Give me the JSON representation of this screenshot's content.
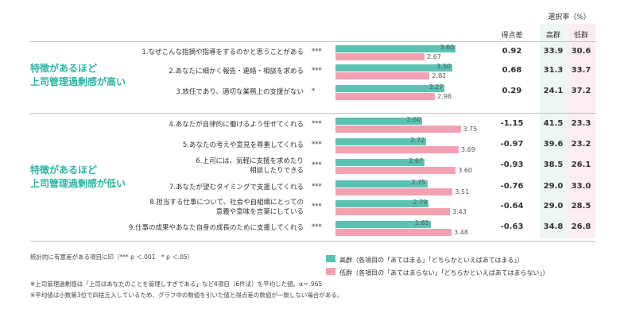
{
  "header": {
    "selection_rate": "選択率（%）",
    "col_diff": "得点差",
    "col_high": "高群",
    "col_low": "低群"
  },
  "groups": [
    {
      "label_line1": "特徴があるほど",
      "label_line2": "上司管理過剰感が高い"
    },
    {
      "label_line1": "特徴があるほど",
      "label_line2": "上司管理過剰感が低い"
    }
  ],
  "colors": {
    "high": "#5bc2b2",
    "low": "#f3a1b0",
    "accent": "#2eb5a4"
  },
  "chart_data": {
    "type": "bar",
    "orientation": "horizontal",
    "xlim": [
      0,
      4
    ],
    "series": [
      {
        "name": "高群",
        "values": [
          3.6,
          3.5,
          3.27,
          2.6,
          2.72,
          2.67,
          2.75,
          2.79,
          2.85
        ]
      },
      {
        "name": "低群",
        "values": [
          2.67,
          2.82,
          2.98,
          3.75,
          3.69,
          3.6,
          3.51,
          3.43,
          3.48
        ]
      }
    ],
    "categories": [
      {
        "line1": "1.なぜこんな指摘や指導をするのかと思うことがある",
        "line2": "",
        "sig": "***",
        "diff": "0.92",
        "high_rate": "33.9",
        "low_rate": "30.6",
        "high_label": "3.60",
        "low_label": "2.67"
      },
      {
        "line1": "2.あなたに細かく報告・連絡・相談を求める",
        "line2": "",
        "sig": "***",
        "diff": "0.68",
        "high_rate": "31.3",
        "low_rate": "33.7",
        "high_label": "3.50",
        "low_label": "2.82"
      },
      {
        "line1": "3.放任であり、適切な業務上の支援がない",
        "line2": "",
        "sig": "*",
        "diff": "0.29",
        "high_rate": "24.1",
        "low_rate": "37.2",
        "high_label": "3.27",
        "low_label": "2.98"
      },
      {
        "line1": "4.あなたが自律的に働けるよう任せてくれる",
        "line2": "",
        "sig": "***",
        "diff": "-1.15",
        "high_rate": "41.5",
        "low_rate": "23.3",
        "high_label": "2.60",
        "low_label": "3.75"
      },
      {
        "line1": "5.あなたの考えや意見を尊重してくれる",
        "line2": "",
        "sig": "***",
        "diff": "-0.97",
        "high_rate": "39.6",
        "low_rate": "23.2",
        "high_label": "2.72",
        "low_label": "3.69"
      },
      {
        "line1": "6.上司には、気軽に支援を求めたり",
        "line2": "相談したりできる",
        "sig": "***",
        "diff": "-0.93",
        "high_rate": "38.5",
        "low_rate": "26.1",
        "high_label": "2.67",
        "low_label": "3.60"
      },
      {
        "line1": "7.あなたが望むタイミングで支援してくれる",
        "line2": "",
        "sig": "***",
        "diff": "-0.76",
        "high_rate": "29.0",
        "low_rate": "33.0",
        "high_label": "2.75",
        "low_label": "3.51"
      },
      {
        "line1": "8.担当する仕事について、社会や自組織にとっての",
        "line2": "意義や意味を言葉にしている",
        "sig": "***",
        "diff": "-0.64",
        "high_rate": "29.0",
        "low_rate": "28.5",
        "high_label": "2.79",
        "low_label": "3.43"
      },
      {
        "line1": "9.仕事の成果やあなた自身の成長のために支援してくれる",
        "line2": "",
        "sig": "***",
        "diff": "-0.63",
        "high_rate": "34.8",
        "low_rate": "26.8",
        "high_label": "2.85",
        "low_label": "3.48"
      }
    ]
  },
  "legend": {
    "high": "高群（各項目の「あてはまる」「どちらかといえばあてはまる」）",
    "low": "低群（各項目の「あてはまらない」「どちらかといえばあてはまらない」）"
  },
  "notes": {
    "significance": "統計的に有意差がある項目に印（*** p ＜.001　* p ＜.05）",
    "note1": "※上司管理過剰感は「上司はあなたのことを管理しすぎである」など4項目（6件法）を平均した値。α＝.965",
    "note2": "※平均値は小数第3位で四捨五入しているため、グラフ中の数値を引いた値と得点差の数値が一致しない場合がある。"
  }
}
